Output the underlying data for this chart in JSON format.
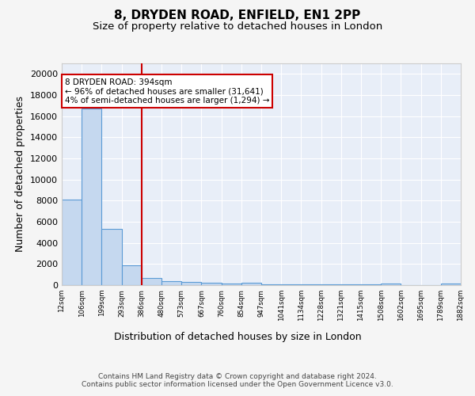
{
  "title": "8, DRYDEN ROAD, ENFIELD, EN1 2PP",
  "subtitle": "Size of property relative to detached houses in London",
  "xlabel": "Distribution of detached houses by size in London",
  "ylabel": "Number of detached properties",
  "bin_labels": [
    "12sqm",
    "106sqm",
    "199sqm",
    "293sqm",
    "386sqm",
    "480sqm",
    "573sqm",
    "667sqm",
    "760sqm",
    "854sqm",
    "947sqm",
    "1041sqm",
    "1134sqm",
    "1228sqm",
    "1321sqm",
    "1415sqm",
    "1508sqm",
    "1602sqm",
    "1695sqm",
    "1789sqm",
    "1882sqm"
  ],
  "bar_heights": [
    8100,
    16700,
    5300,
    1900,
    700,
    350,
    300,
    250,
    150,
    200,
    100,
    80,
    60,
    50,
    70,
    40,
    160,
    30,
    20,
    170
  ],
  "bar_color": "#c5d8ef",
  "bar_edge_color": "#5b9bd5",
  "red_line_bin": 4,
  "red_line_color": "#cc0000",
  "annotation_text": "8 DRYDEN ROAD: 394sqm\n← 96% of detached houses are smaller (31,641)\n4% of semi-detached houses are larger (1,294) →",
  "annotation_box_color": "#ffffff",
  "annotation_box_edge": "#cc0000",
  "ylim": [
    0,
    21000
  ],
  "yticks": [
    0,
    2000,
    4000,
    6000,
    8000,
    10000,
    12000,
    14000,
    16000,
    18000,
    20000
  ],
  "title_fontsize": 11,
  "subtitle_fontsize": 9.5,
  "xlabel_fontsize": 9,
  "ylabel_fontsize": 9,
  "tick_fontsize": 8,
  "footer_text": "Contains HM Land Registry data © Crown copyright and database right 2024.\nContains public sector information licensed under the Open Government Licence v3.0.",
  "background_color": "#e8eef8",
  "grid_color": "#ffffff",
  "fig_bg": "#f5f5f5"
}
